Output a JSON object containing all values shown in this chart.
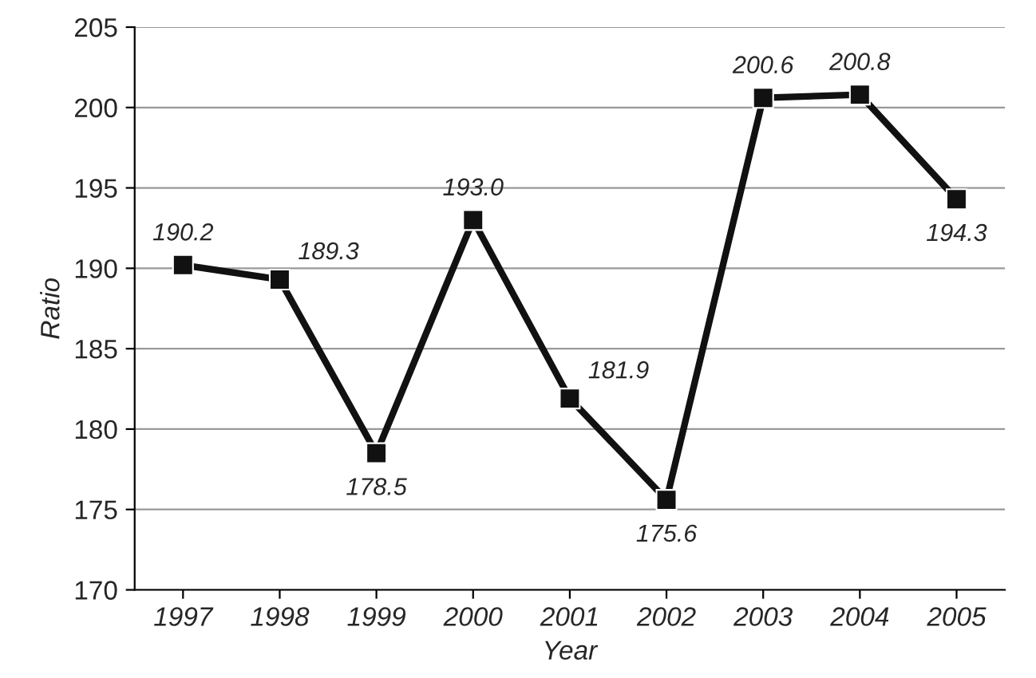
{
  "chart_data": {
    "type": "line",
    "xlabel": "Year",
    "ylabel": "Ratio",
    "categories": [
      "1997",
      "1998",
      "1999",
      "2000",
      "2001",
      "2002",
      "2003",
      "2004",
      "2005"
    ],
    "series": [
      {
        "color": "#111111",
        "values": [
          190.2,
          189.3,
          178.5,
          193.0,
          181.9,
          175.6,
          200.6,
          200.8,
          194.3
        ]
      }
    ],
    "value_labels": [
      "190.2",
      "189.3",
      "178.5",
      "193.0",
      "181.9",
      "175.6",
      "200.6",
      "200.8",
      "194.3"
    ],
    "ylim": [
      170,
      205
    ],
    "yticks": [
      170,
      175,
      180,
      185,
      190,
      195,
      200,
      205
    ],
    "grid": "y",
    "marker": "square",
    "line_style": "solid",
    "legend": false
  }
}
